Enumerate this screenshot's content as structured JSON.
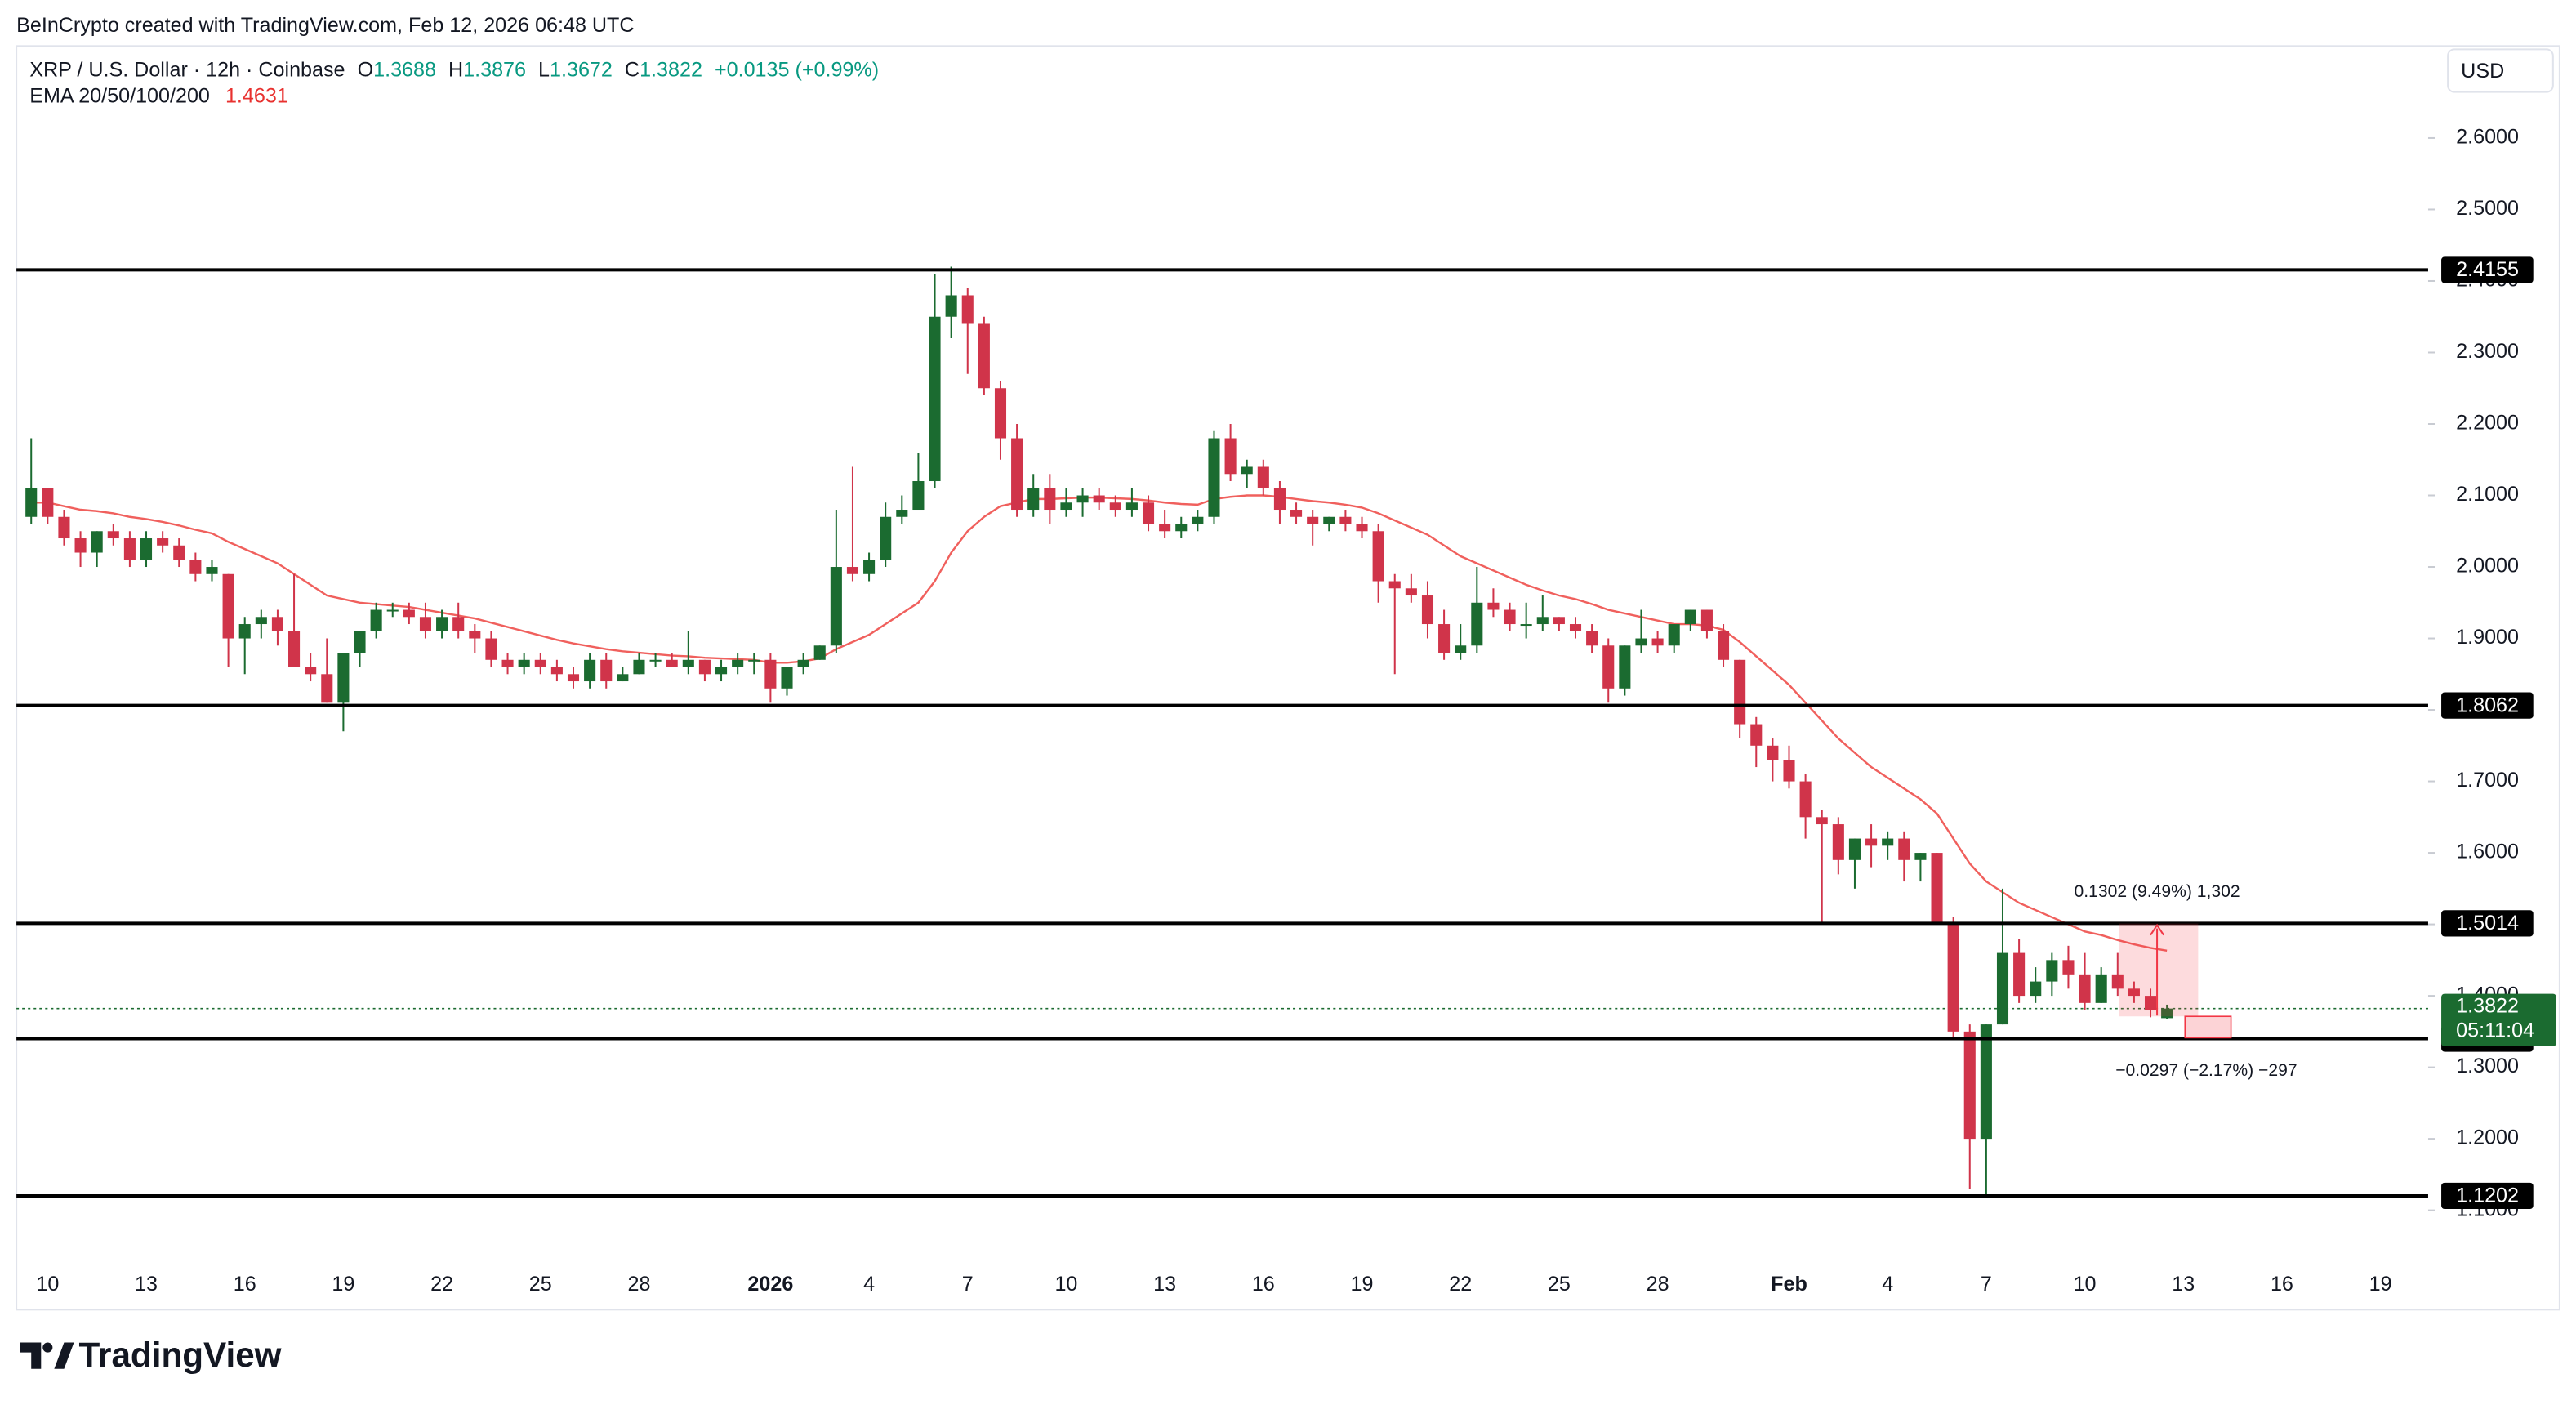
{
  "credit": "BeInCrypto created with TradingView.com, Feb 12, 2026 06:48 UTC",
  "logo": "TradingView",
  "chart_data": {
    "type": "candlestick",
    "title": "XRP / U.S. Dollar · 12h · Coinbase",
    "ohlc_labels": [
      "O",
      "H",
      "L",
      "C"
    ],
    "change": "+0.0135 (+0.99%)",
    "currency": "USD",
    "countdown": "05:11:04",
    "up_color": "#1b6b30",
    "down_color": "#d0344a",
    "x": [
      -0.5,
      0,
      0.5,
      1,
      1.5,
      2,
      2.5,
      3,
      3.5,
      4,
      4.5,
      5,
      5.5,
      6,
      6.5,
      7,
      7.5,
      8,
      8.5,
      9,
      9.5,
      10,
      10.5,
      11,
      11.5,
      12,
      12.5,
      13,
      13.5,
      14,
      14.5,
      15,
      15.5,
      16,
      16.5,
      17,
      17.5,
      18,
      18.5,
      19,
      19.5,
      20,
      20.5,
      21,
      21.5,
      22,
      22.5,
      23,
      23.5,
      24,
      24.5,
      25,
      25.5,
      26,
      26.5,
      27,
      27.5,
      28,
      28.5,
      29,
      29.5,
      30,
      30.5,
      31,
      31.5,
      32,
      32.5,
      33,
      33.5,
      34,
      34.5,
      35,
      35.5,
      36,
      36.5,
      37,
      37.5,
      38,
      38.5,
      39,
      39.5,
      40,
      40.5,
      41,
      41.5,
      42,
      42.5,
      43,
      43.5,
      44,
      44.5,
      45,
      45.5,
      46,
      46.5,
      47,
      47.5,
      48,
      48.5,
      49,
      49.5,
      50,
      50.5,
      51,
      51.5,
      52,
      52.5,
      53,
      53.5,
      54,
      54.5,
      55,
      55.5,
      56,
      56.5,
      57,
      57.5,
      58,
      58.5,
      59,
      59.5,
      60,
      60.5,
      61,
      61.5,
      62,
      62.5,
      63,
      63.5,
      64,
      64.5
    ],
    "open": [
      2.07,
      2.11,
      2.07,
      2.04,
      2.02,
      2.05,
      2.04,
      2.01,
      2.04,
      2.03,
      2.01,
      1.99,
      1.99,
      1.9,
      1.92,
      1.93,
      1.91,
      1.86,
      1.85,
      1.81,
      1.88,
      1.91,
      1.94,
      1.94,
      1.93,
      1.91,
      1.93,
      1.91,
      1.9,
      1.87,
      1.86,
      1.87,
      1.86,
      1.85,
      1.84,
      1.87,
      1.84,
      1.85,
      1.87,
      1.87,
      1.86,
      1.87,
      1.85,
      1.86,
      1.87,
      1.87,
      1.83,
      1.86,
      1.87,
      1.89,
      2.0,
      1.99,
      2.01,
      2.07,
      2.08,
      2.12,
      2.35,
      2.38,
      2.34,
      2.25,
      2.18,
      2.08,
      2.11,
      2.08,
      2.09,
      2.1,
      2.09,
      2.08,
      2.09,
      2.06,
      2.05,
      2.06,
      2.07,
      2.18,
      2.13,
      2.14,
      2.11,
      2.08,
      2.07,
      2.06,
      2.07,
      2.06,
      2.05,
      1.98,
      1.97,
      1.96,
      1.92,
      1.88,
      1.89,
      1.95,
      1.94,
      1.92,
      1.92,
      1.93,
      1.92,
      1.91,
      1.89,
      1.83,
      1.89,
      1.9,
      1.89,
      1.92,
      1.94,
      1.91,
      1.87,
      1.78,
      1.75,
      1.73,
      1.7,
      1.65,
      1.64,
      1.59,
      1.62,
      1.61,
      1.62,
      1.59,
      1.6,
      1.5,
      1.35,
      1.2,
      1.36,
      1.46,
      1.4,
      1.42,
      1.45,
      1.43,
      1.39,
      1.43,
      1.41,
      1.4,
      1.3688
    ],
    "high": [
      2.18,
      2.11,
      2.08,
      2.05,
      2.05,
      2.06,
      2.05,
      2.05,
      2.05,
      2.04,
      2.02,
      2.01,
      1.99,
      1.93,
      1.94,
      1.94,
      1.99,
      1.88,
      1.9,
      1.88,
      1.91,
      1.95,
      1.95,
      1.95,
      1.95,
      1.94,
      1.95,
      1.92,
      1.91,
      1.88,
      1.88,
      1.88,
      1.87,
      1.86,
      1.88,
      1.88,
      1.86,
      1.88,
      1.88,
      1.88,
      1.91,
      1.87,
      1.87,
      1.88,
      1.88,
      1.88,
      1.86,
      1.88,
      1.89,
      2.08,
      2.14,
      2.02,
      2.09,
      2.1,
      2.16,
      2.41,
      2.42,
      2.39,
      2.35,
      2.26,
      2.2,
      2.13,
      2.13,
      2.11,
      2.11,
      2.11,
      2.1,
      2.11,
      2.1,
      2.08,
      2.07,
      2.08,
      2.19,
      2.2,
      2.15,
      2.15,
      2.12,
      2.09,
      2.08,
      2.07,
      2.08,
      2.07,
      2.06,
      1.99,
      1.99,
      1.98,
      1.94,
      1.92,
      2.0,
      1.97,
      1.95,
      1.95,
      1.96,
      1.93,
      1.93,
      1.92,
      1.9,
      1.89,
      1.94,
      1.91,
      1.92,
      1.94,
      1.94,
      1.92,
      1.87,
      1.79,
      1.76,
      1.75,
      1.71,
      1.66,
      1.65,
      1.62,
      1.64,
      1.63,
      1.63,
      1.6,
      1.6,
      1.51,
      1.36,
      1.36,
      1.55,
      1.48,
      1.44,
      1.46,
      1.47,
      1.46,
      1.44,
      1.46,
      1.42,
      1.41,
      1.3876
    ],
    "low": [
      2.06,
      2.06,
      2.03,
      2.0,
      2.0,
      2.03,
      2.0,
      2.0,
      2.02,
      2.0,
      1.98,
      1.98,
      1.86,
      1.85,
      1.9,
      1.89,
      1.86,
      1.84,
      1.81,
      1.77,
      1.86,
      1.9,
      1.93,
      1.92,
      1.9,
      1.9,
      1.9,
      1.88,
      1.86,
      1.85,
      1.85,
      1.85,
      1.84,
      1.83,
      1.83,
      1.83,
      1.84,
      1.85,
      1.86,
      1.86,
      1.85,
      1.84,
      1.84,
      1.85,
      1.85,
      1.81,
      1.82,
      1.85,
      1.87,
      1.88,
      1.98,
      1.98,
      2.0,
      2.06,
      2.08,
      2.11,
      2.32,
      2.27,
      2.24,
      2.15,
      2.07,
      2.07,
      2.06,
      2.07,
      2.07,
      2.08,
      2.07,
      2.07,
      2.05,
      2.04,
      2.04,
      2.05,
      2.06,
      2.12,
      2.11,
      2.1,
      2.06,
      2.06,
      2.03,
      2.05,
      2.05,
      2.04,
      1.95,
      1.85,
      1.95,
      1.9,
      1.87,
      1.87,
      1.88,
      1.93,
      1.91,
      1.9,
      1.91,
      1.91,
      1.9,
      1.88,
      1.81,
      1.82,
      1.88,
      1.88,
      1.88,
      1.91,
      1.9,
      1.86,
      1.76,
      1.72,
      1.7,
      1.69,
      1.62,
      1.5,
      1.57,
      1.55,
      1.58,
      1.59,
      1.56,
      1.56,
      1.5,
      1.34,
      1.13,
      1.12,
      1.36,
      1.39,
      1.39,
      1.4,
      1.41,
      1.38,
      1.39,
      1.4,
      1.39,
      1.37,
      1.3672
    ],
    "close": [
      2.11,
      2.07,
      2.04,
      2.02,
      2.05,
      2.04,
      2.01,
      2.04,
      2.03,
      2.01,
      1.99,
      2.0,
      1.9,
      1.92,
      1.93,
      1.91,
      1.86,
      1.85,
      1.81,
      1.88,
      1.91,
      1.94,
      1.94,
      1.93,
      1.91,
      1.93,
      1.91,
      1.9,
      1.87,
      1.86,
      1.87,
      1.86,
      1.85,
      1.84,
      1.87,
      1.84,
      1.85,
      1.87,
      1.87,
      1.86,
      1.87,
      1.85,
      1.86,
      1.87,
      1.87,
      1.83,
      1.86,
      1.87,
      1.89,
      2.0,
      1.99,
      2.01,
      2.07,
      2.08,
      2.12,
      2.35,
      2.38,
      2.34,
      2.25,
      2.18,
      2.08,
      2.11,
      2.08,
      2.09,
      2.1,
      2.09,
      2.08,
      2.09,
      2.06,
      2.05,
      2.06,
      2.07,
      2.18,
      2.13,
      2.14,
      2.11,
      2.08,
      2.07,
      2.06,
      2.07,
      2.06,
      2.05,
      1.98,
      1.97,
      1.96,
      1.92,
      1.88,
      1.89,
      1.95,
      1.94,
      1.92,
      1.92,
      1.93,
      1.92,
      1.91,
      1.89,
      1.83,
      1.89,
      1.9,
      1.89,
      1.92,
      1.94,
      1.91,
      1.87,
      1.78,
      1.75,
      1.73,
      1.7,
      1.65,
      1.64,
      1.59,
      1.62,
      1.61,
      1.62,
      1.59,
      1.6,
      1.5,
      1.35,
      1.2,
      1.36,
      1.46,
      1.4,
      1.42,
      1.45,
      1.43,
      1.39,
      1.43,
      1.41,
      1.4,
      1.38,
      1.3822
    ],
    "ema": {
      "name": "EMA 20/50/100/200",
      "color": "#f0605d",
      "values": [
        2.09,
        2.09,
        2.085,
        2.08,
        2.078,
        2.075,
        2.07,
        2.067,
        2.063,
        2.058,
        2.052,
        2.047,
        2.035,
        2.025,
        2.015,
        2.005,
        1.99,
        1.975,
        1.96,
        1.955,
        1.95,
        1.948,
        1.946,
        1.944,
        1.94,
        1.936,
        1.932,
        1.928,
        1.922,
        1.916,
        1.91,
        1.904,
        1.898,
        1.893,
        1.889,
        1.885,
        1.882,
        1.88,
        1.878,
        1.876,
        1.875,
        1.873,
        1.872,
        1.871,
        1.87,
        1.866,
        1.866,
        1.868,
        1.872,
        1.885,
        1.895,
        1.905,
        1.92,
        1.935,
        1.95,
        1.98,
        2.02,
        2.05,
        2.07,
        2.085,
        2.09,
        2.095,
        2.095,
        2.096,
        2.097,
        2.097,
        2.096,
        2.095,
        2.093,
        2.09,
        2.088,
        2.087,
        2.095,
        2.098,
        2.1,
        2.1,
        2.098,
        2.095,
        2.092,
        2.09,
        2.087,
        2.083,
        2.075,
        2.065,
        2.055,
        2.045,
        2.03,
        2.015,
        2.005,
        1.995,
        1.985,
        1.975,
        1.967,
        1.96,
        1.955,
        1.948,
        1.94,
        1.935,
        1.93,
        1.925,
        1.92,
        1.92,
        1.918,
        1.912,
        1.895,
        1.875,
        1.855,
        1.835,
        1.81,
        1.785,
        1.76,
        1.74,
        1.72,
        1.705,
        1.69,
        1.675,
        1.655,
        1.62,
        1.585,
        1.56,
        1.545,
        1.53,
        1.52,
        1.51,
        1.5,
        1.49,
        1.485,
        1.478,
        1.472,
        1.467,
        1.4631
      ]
    },
    "levels": [
      2.4155,
      1.8062,
      1.5014,
      1.3401,
      1.1202
    ],
    "measure_up": "0.1302 (9.49%) 1,302",
    "measure_down": "−0.0297 (−2.17%) −297",
    "xlim": [
      -0.95,
      72.45
    ],
    "xticks": [
      {
        "value": 0,
        "label": "10"
      },
      {
        "value": 3,
        "label": "13"
      },
      {
        "value": 6,
        "label": "16"
      },
      {
        "value": 9,
        "label": "19"
      },
      {
        "value": 12,
        "label": "22"
      },
      {
        "value": 15,
        "label": "25"
      },
      {
        "value": 18,
        "label": "28"
      },
      {
        "value": 22,
        "label": "2026"
      },
      {
        "value": 25,
        "label": "4"
      },
      {
        "value": 28,
        "label": "7"
      },
      {
        "value": 31,
        "label": "10"
      },
      {
        "value": 34,
        "label": "13"
      },
      {
        "value": 37,
        "label": "16"
      },
      {
        "value": 40,
        "label": "19"
      },
      {
        "value": 43,
        "label": "22"
      },
      {
        "value": 46,
        "label": "25"
      },
      {
        "value": 49,
        "label": "28"
      },
      {
        "value": 53,
        "label": "Feb"
      },
      {
        "value": 56,
        "label": "4"
      },
      {
        "value": 59,
        "label": "7"
      },
      {
        "value": 62,
        "label": "10"
      },
      {
        "value": 65,
        "label": "13"
      },
      {
        "value": 68,
        "label": "16"
      },
      {
        "value": 71,
        "label": "19"
      }
    ],
    "ylim": [
      1.0345,
      2.7287
    ],
    "yticks": [
      {
        "value": 1.1,
        "label": "1.1000"
      },
      {
        "value": 1.2,
        "label": "1.2000"
      },
      {
        "value": 1.3,
        "label": "1.3000"
      },
      {
        "value": 1.4,
        "label": "1.4000"
      },
      {
        "value": 1.5,
        "label": "1.5000"
      },
      {
        "value": 1.6,
        "label": "1.6000"
      },
      {
        "value": 1.7,
        "label": "1.7000"
      },
      {
        "value": 1.8,
        "label": "1.8000"
      },
      {
        "value": 1.9,
        "label": "1.9000"
      },
      {
        "value": 2.0,
        "label": "2.0000"
      },
      {
        "value": 2.1,
        "label": "2.1000"
      },
      {
        "value": 2.2,
        "label": "2.2000"
      },
      {
        "value": 2.3,
        "label": "2.3000"
      },
      {
        "value": 2.4,
        "label": "2.4000"
      },
      {
        "value": 2.5,
        "label": "2.5000"
      },
      {
        "value": 2.6,
        "label": "2.6000"
      }
    ],
    "grid": false
  }
}
